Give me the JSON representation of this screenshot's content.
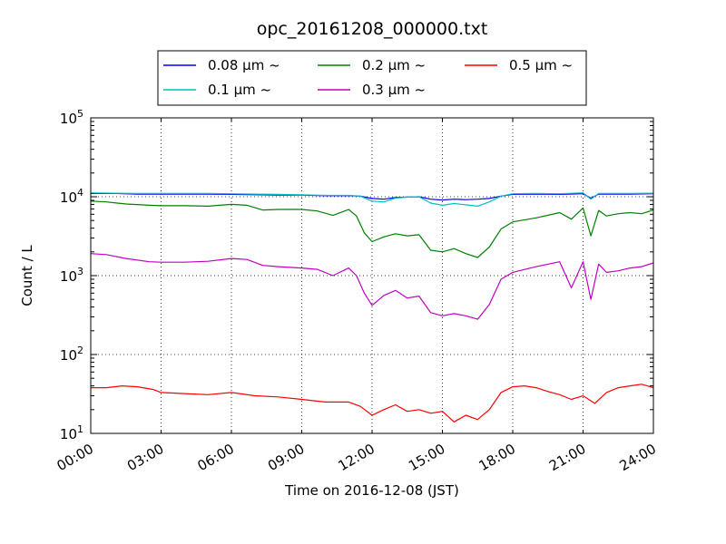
{
  "chart_data": {
    "type": "line",
    "title": "opc_20161208_000000.txt",
    "xlabel": "Time on 2016-12-08 (JST)",
    "ylabel": "Count / L",
    "yscale": "log",
    "ylim": [
      10,
      100000
    ],
    "xlim": [
      "00:00",
      "24:00"
    ],
    "grid": true,
    "legend_position": "top",
    "x_ticks": [
      "00:00",
      "03:00",
      "06:00",
      "09:00",
      "12:00",
      "15:00",
      "18:00",
      "21:00",
      "24:00"
    ],
    "y_ticks": [
      {
        "base": "10",
        "exp": "1"
      },
      {
        "base": "10",
        "exp": "2"
      },
      {
        "base": "10",
        "exp": "3"
      },
      {
        "base": "10",
        "exp": "4"
      },
      {
        "base": "10",
        "exp": "5"
      }
    ],
    "series": [
      {
        "name": "0.08 μm ~",
        "color": "#0000ff",
        "x": [
          "00:00",
          "01:00",
          "02:00",
          "03:00",
          "04:00",
          "05:00",
          "06:00",
          "07:00",
          "08:00",
          "09:00",
          "10:00",
          "11:00",
          "11:30",
          "12:00",
          "12:30",
          "13:00",
          "13:30",
          "14:00",
          "14:30",
          "15:00",
          "15:30",
          "16:00",
          "16:30",
          "17:00",
          "17:30",
          "18:00",
          "19:00",
          "20:00",
          "21:00",
          "21:20",
          "21:40",
          "22:00",
          "23:00",
          "24:00"
        ],
        "values": [
          11000,
          11000,
          10800,
          10800,
          10800,
          10800,
          10700,
          10600,
          10500,
          10500,
          10300,
          10300,
          10200,
          9500,
          9300,
          9800,
          9900,
          10000,
          9300,
          9100,
          9300,
          9200,
          9300,
          9500,
          10200,
          10700,
          10800,
          10700,
          10900,
          9600,
          10800,
          10800,
          10800,
          10900
        ]
      },
      {
        "name": "0.1 μm ~",
        "color": "#00bfbf",
        "x": [
          "00:00",
          "01:00",
          "02:00",
          "03:00",
          "04:00",
          "05:00",
          "06:00",
          "07:00",
          "08:00",
          "09:00",
          "10:00",
          "11:00",
          "11:30",
          "12:00",
          "12:30",
          "13:00",
          "13:30",
          "14:00",
          "14:30",
          "15:00",
          "15:30",
          "16:00",
          "16:30",
          "17:00",
          "17:30",
          "18:00",
          "19:00",
          "20:00",
          "21:00",
          "21:20",
          "21:40",
          "22:00",
          "23:00",
          "24:00"
        ],
        "values": [
          11200,
          11100,
          11000,
          11000,
          11000,
          11000,
          10900,
          10800,
          10700,
          10600,
          10400,
          10400,
          10200,
          8800,
          8600,
          9600,
          9900,
          10000,
          8300,
          7800,
          8200,
          7900,
          7600,
          8600,
          10200,
          10900,
          11000,
          10900,
          11200,
          9300,
          11000,
          11000,
          11000,
          11100
        ]
      },
      {
        "name": "0.2 μm ~",
        "color": "#008000",
        "x": [
          "00:00",
          "00:40",
          "01:30",
          "02:30",
          "03:00",
          "04:00",
          "05:00",
          "06:00",
          "06:40",
          "07:20",
          "08:00",
          "09:00",
          "09:40",
          "10:20",
          "11:00",
          "11:20",
          "11:40",
          "12:00",
          "12:30",
          "13:00",
          "13:30",
          "14:00",
          "14:30",
          "15:00",
          "15:30",
          "16:00",
          "16:30",
          "17:00",
          "17:30",
          "18:00",
          "19:00",
          "20:00",
          "20:30",
          "21:00",
          "21:20",
          "21:40",
          "22:00",
          "22:30",
          "23:00",
          "23:30",
          "24:00"
        ],
        "values": [
          8800,
          8600,
          8100,
          7800,
          7700,
          7700,
          7600,
          8000,
          7800,
          6800,
          6900,
          6900,
          6600,
          5800,
          6900,
          5700,
          3500,
          2700,
          3100,
          3400,
          3200,
          3300,
          2100,
          2000,
          2200,
          1900,
          1700,
          2300,
          3900,
          4800,
          5400,
          6300,
          5200,
          7200,
          3200,
          6700,
          5700,
          6100,
          6300,
          6100,
          6800
        ]
      },
      {
        "name": "0.3 μm ~",
        "color": "#bf00bf",
        "x": [
          "00:00",
          "00:40",
          "01:30",
          "02:30",
          "03:00",
          "04:00",
          "05:00",
          "06:00",
          "06:40",
          "07:20",
          "08:00",
          "09:00",
          "09:40",
          "10:20",
          "11:00",
          "11:20",
          "11:40",
          "12:00",
          "12:30",
          "13:00",
          "13:30",
          "14:00",
          "14:30",
          "15:00",
          "15:30",
          "16:00",
          "16:30",
          "17:00",
          "17:30",
          "18:00",
          "19:00",
          "20:00",
          "20:30",
          "21:00",
          "21:20",
          "21:40",
          "22:00",
          "22:30",
          "23:00",
          "23:30",
          "24:00"
        ],
        "values": [
          1900,
          1850,
          1650,
          1500,
          1480,
          1480,
          1520,
          1650,
          1600,
          1350,
          1300,
          1250,
          1200,
          1000,
          1250,
          1000,
          600,
          420,
          560,
          650,
          520,
          550,
          340,
          310,
          330,
          310,
          280,
          430,
          900,
          1100,
          1300,
          1500,
          700,
          1500,
          500,
          1400,
          1100,
          1150,
          1250,
          1300,
          1450
        ]
      },
      {
        "name": "0.5 μm ~",
        "color": "#ff0000",
        "x": [
          "00:00",
          "00:40",
          "01:20",
          "02:00",
          "02:40",
          "03:00",
          "04:00",
          "05:00",
          "06:00",
          "07:00",
          "08:00",
          "09:00",
          "10:00",
          "11:00",
          "11:30",
          "12:00",
          "12:30",
          "13:00",
          "13:30",
          "14:00",
          "14:30",
          "15:00",
          "15:30",
          "16:00",
          "16:30",
          "17:00",
          "17:30",
          "18:00",
          "18:30",
          "19:00",
          "19:30",
          "20:00",
          "20:30",
          "21:00",
          "21:30",
          "22:00",
          "22:30",
          "23:00",
          "23:30",
          "24:00"
        ],
        "values": [
          38,
          38,
          40,
          39,
          36,
          33,
          32,
          31,
          33,
          30,
          29,
          27,
          25,
          25,
          22,
          17,
          20,
          23,
          19,
          20,
          18,
          19,
          14,
          17,
          15,
          20,
          33,
          39,
          40,
          38,
          34,
          31,
          27,
          30,
          24,
          33,
          38,
          40,
          42,
          38
        ]
      }
    ]
  }
}
